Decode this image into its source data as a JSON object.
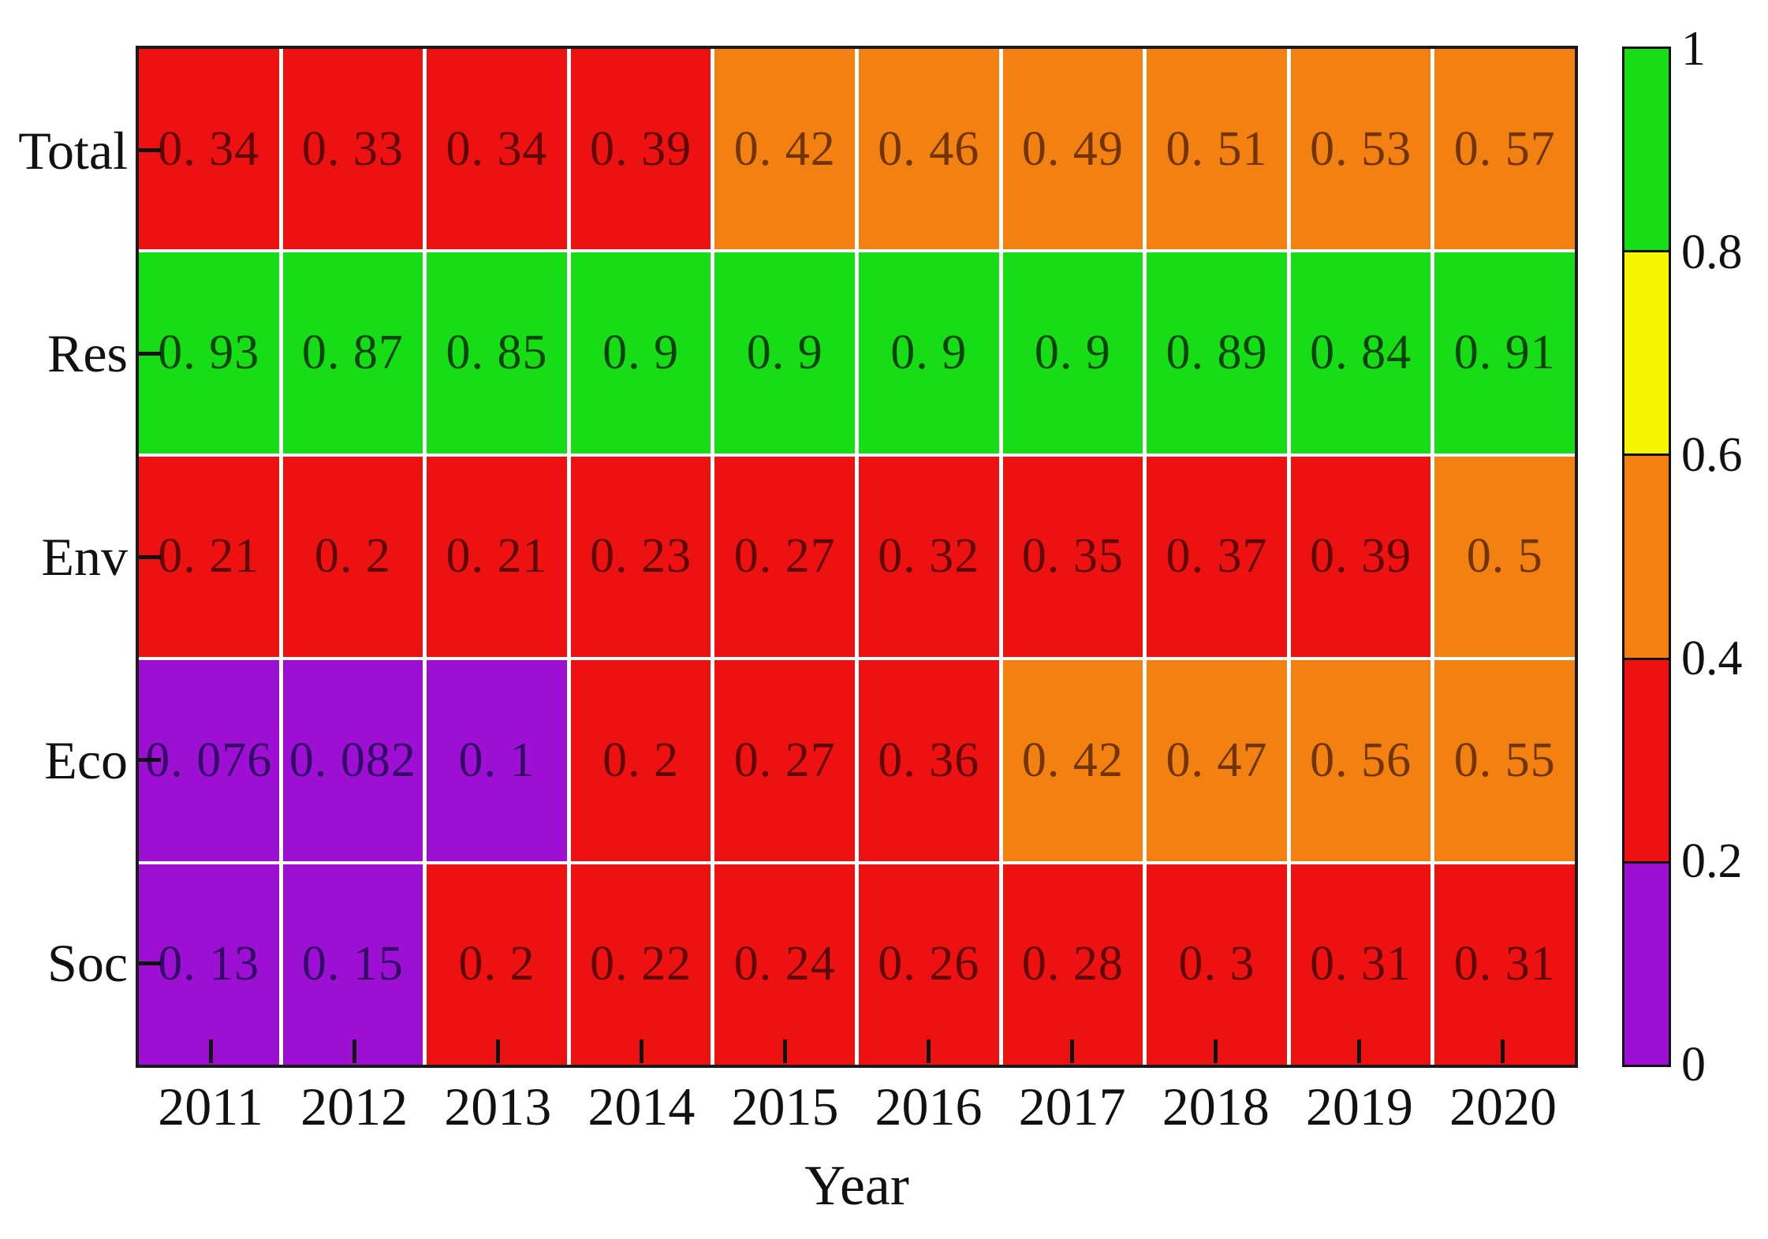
{
  "figure": {
    "background": "#ffffff",
    "plot_border_color": "#1a1a1a",
    "grid_line_color": "#ffffff",
    "tick_color": "#111111",
    "label_color": "#111111"
  },
  "chart_data": {
    "type": "heatmap",
    "title": "",
    "xlabel": "Year",
    "ylabel": "",
    "x_categories": [
      "2011",
      "2012",
      "2013",
      "2014",
      "2015",
      "2016",
      "2017",
      "2018",
      "2019",
      "2020"
    ],
    "y_categories": [
      "Total",
      "Res",
      "Env",
      "Eco",
      "Soc"
    ],
    "series": [
      {
        "name": "Total",
        "values": [
          0.34,
          0.33,
          0.34,
          0.39,
          0.42,
          0.46,
          0.49,
          0.51,
          0.53,
          0.57
        ]
      },
      {
        "name": "Res",
        "values": [
          0.93,
          0.87,
          0.85,
          0.9,
          0.9,
          0.9,
          0.9,
          0.89,
          0.84,
          0.91
        ]
      },
      {
        "name": "Env",
        "values": [
          0.21,
          0.2,
          0.21,
          0.23,
          0.27,
          0.32,
          0.35,
          0.37,
          0.39,
          0.5
        ]
      },
      {
        "name": "Eco",
        "values": [
          0.076,
          0.082,
          0.1,
          0.2,
          0.27,
          0.36,
          0.42,
          0.47,
          0.56,
          0.55
        ]
      },
      {
        "name": "Soc",
        "values": [
          0.13,
          0.15,
          0.2,
          0.22,
          0.24,
          0.26,
          0.28,
          0.3,
          0.31,
          0.31
        ]
      }
    ],
    "value_range": [
      0,
      1
    ],
    "grid": "white lines between cells",
    "legend_position": "colorbar right",
    "color_scale": [
      {
        "name": "green",
        "range": [
          0.8,
          1.0
        ],
        "color": "#17dd17",
        "text_color": "#074207"
      },
      {
        "name": "yellow",
        "range": [
          0.6,
          0.8
        ],
        "color": "#f8f500",
        "text_color": "#6a6a00"
      },
      {
        "name": "orange",
        "range": [
          0.4,
          0.6
        ],
        "color": "#f28111",
        "text_color": "#703503"
      },
      {
        "name": "red",
        "range": [
          0.2,
          0.4
        ],
        "color": "#ee1111",
        "text_color": "#5c0707"
      },
      {
        "name": "purple",
        "range": [
          0.0,
          0.2
        ],
        "color": "#9d0fd3",
        "text_color": "#320a66"
      }
    ],
    "colorbar_ticks": [
      "1",
      "0.8",
      "0.6",
      "0.4",
      "0.2",
      "0"
    ]
  }
}
